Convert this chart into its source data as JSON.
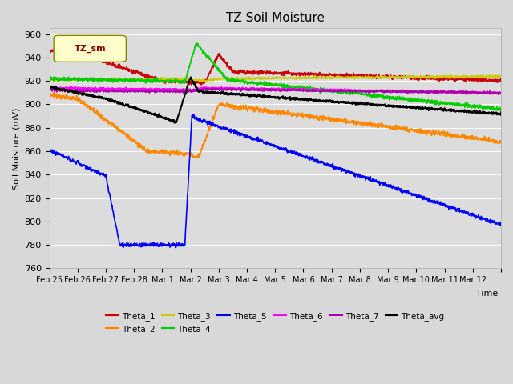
{
  "title": "TZ Soil Moisture",
  "ylabel": "Soil Moisture (mV)",
  "xlabel": "Time",
  "xlim_days": 16,
  "ylim": [
    760,
    965
  ],
  "yticks": [
    760,
    780,
    800,
    820,
    840,
    860,
    880,
    900,
    920,
    940,
    960
  ],
  "background_color": "#d8d8d8",
  "plot_bg_color": "#dcdcdc",
  "legend_label": "TZ_sm",
  "xtick_vals": [
    0,
    1,
    2,
    3,
    4,
    5,
    6,
    7,
    8,
    9,
    10,
    11,
    12,
    13,
    14,
    15,
    16
  ],
  "xtick_labels": [
    "Feb 25",
    "Feb 26",
    "Feb 27",
    "Feb 28",
    "Mar 1",
    "Mar 2",
    "Mar 3",
    "Mar 4",
    "Mar 5",
    "Mar 6",
    "Mar 7",
    "Mar 8",
    "Mar 9",
    "Mar 10",
    "Mar 11",
    "Mar 12",
    ""
  ],
  "series_colors": {
    "Theta_1": "#cc0000",
    "Theta_2": "#ff8800",
    "Theta_3": "#cccc00",
    "Theta_4": "#00cc00",
    "Theta_5": "#0000ff",
    "Theta_6": "#ff00ff",
    "Theta_7": "#aa00aa",
    "Theta_avg": "#000000"
  }
}
